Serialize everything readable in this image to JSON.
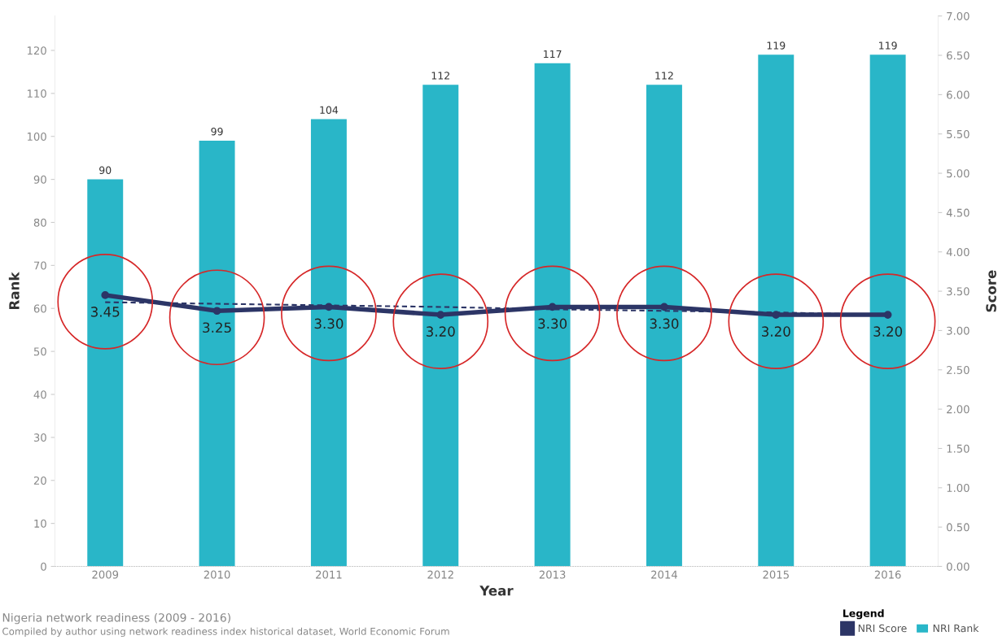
{
  "chart_data": {
    "type": "bar",
    "xlabel": "Year",
    "ylabel": "Rank",
    "y2label": "Score",
    "legend_title": "Legend",
    "legend": "bottom right",
    "grid": false,
    "categories": [
      "2009",
      "2010",
      "2011",
      "2012",
      "2013",
      "2014",
      "2015",
      "2016"
    ],
    "ylim": [
      0,
      128
    ],
    "yticks": [
      0,
      10,
      20,
      30,
      40,
      50,
      60,
      70,
      80,
      90,
      100,
      110,
      120
    ],
    "y2lim": [
      0,
      7
    ],
    "y2ticks": [
      {
        "value": 0,
        "label": "0.00"
      },
      {
        "value": 0.5,
        "label": "0.50"
      },
      {
        "value": 1,
        "label": "1.00"
      },
      {
        "value": 1.5,
        "label": "1.50"
      },
      {
        "value": 2,
        "label": "2.00"
      },
      {
        "value": 2.5,
        "label": "2.50"
      },
      {
        "value": 3,
        "label": "3.00"
      },
      {
        "value": 3.5,
        "label": "3.50"
      },
      {
        "value": 4,
        "label": "4.00"
      },
      {
        "value": 4.5,
        "label": "4.50"
      },
      {
        "value": 5,
        "label": "5.00"
      },
      {
        "value": 5.5,
        "label": "5.50"
      },
      {
        "value": 6,
        "label": "6.00"
      },
      {
        "value": 6.5,
        "label": "6.50"
      },
      {
        "value": 7,
        "label": "7.00"
      }
    ],
    "series": [
      {
        "name": "NRI Rank",
        "color": "#29b6c8",
        "values": [
          90,
          99,
          104,
          112,
          117,
          112,
          119,
          119
        ],
        "value_labels": [
          "90",
          "99",
          "104",
          "112",
          "117",
          "112",
          "119",
          "119"
        ]
      },
      {
        "name": "NRI Score",
        "type": "line",
        "axis": "y2",
        "color": "#2c3566",
        "marker": "circle",
        "line_style": "solid",
        "values": [
          3.45,
          3.25,
          3.3,
          3.2,
          3.3,
          3.3,
          3.2,
          3.2
        ],
        "value_labels": [
          "3.45",
          "3.25",
          "3.30",
          "3.20",
          "3.30",
          "3.30",
          "3.20",
          "3.20"
        ]
      },
      {
        "type": "line",
        "axis": "y2",
        "color": "#2c3566",
        "marker": "none",
        "line_style": "dashed",
        "values": [
          3.36,
          3.34,
          3.32,
          3.3,
          3.27,
          3.25,
          3.23,
          3.2
        ]
      }
    ],
    "annotations": [
      "Nigeria network readiness (2009 - 2016)",
      "Compiled by author using network readiness index historical dataset, World Economic Forum"
    ]
  }
}
